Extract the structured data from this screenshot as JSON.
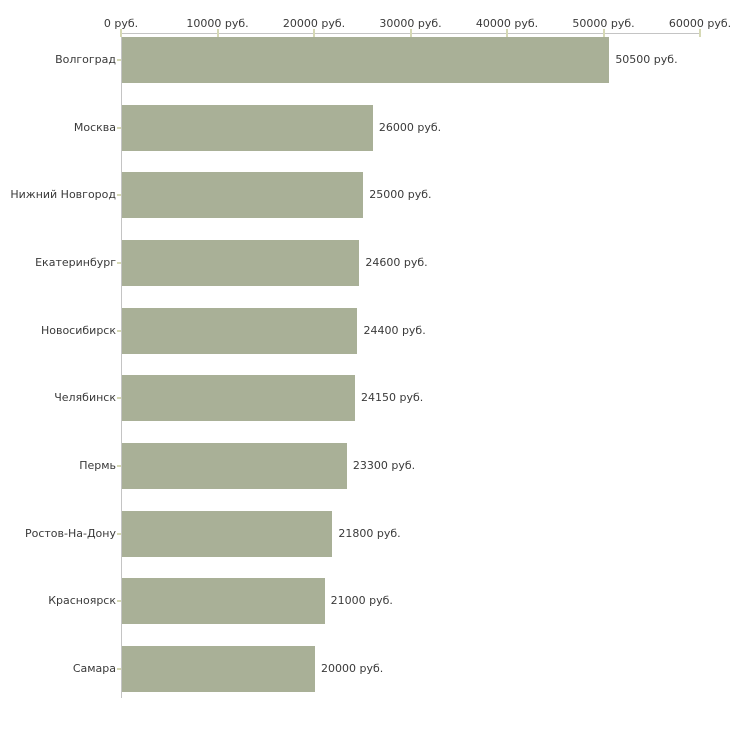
{
  "chart_data": {
    "type": "bar",
    "orientation": "horizontal",
    "title": "",
    "xlabel": "",
    "ylabel": "",
    "categories": [
      "Волгоград",
      "Москва",
      "Нижний Новгород",
      "Екатеринбург",
      "Новосибирск",
      "Челябинск",
      "Пермь",
      "Ростов-На-Дону",
      "Красноярск",
      "Самара"
    ],
    "values": [
      50500,
      26000,
      25000,
      24600,
      24400,
      24150,
      23300,
      21800,
      21000,
      20000
    ],
    "value_labels": [
      "50500 руб.",
      "26000 руб.",
      "25000 руб.",
      "24600 руб.",
      "24400 руб.",
      "24150 руб.",
      "23300 руб.",
      "21800 руб.",
      "21000 руб.",
      "20000 руб."
    ],
    "x_ticks": [
      "0 руб.",
      "10000 руб.",
      "20000 руб.",
      "30000 руб.",
      "40000 руб.",
      "50000 руб.",
      "60000 руб."
    ],
    "x_tick_values": [
      0,
      10000,
      20000,
      30000,
      40000,
      50000,
      60000
    ],
    "xlim": [
      0,
      60000
    ],
    "grid": false,
    "legend": false,
    "colors": {
      "bar": "#a9b097",
      "axis_line": "#c4c4c4",
      "tick_mark": "#d6d9b5",
      "text": "#3a3a3a",
      "background": "#ffffff"
    }
  }
}
